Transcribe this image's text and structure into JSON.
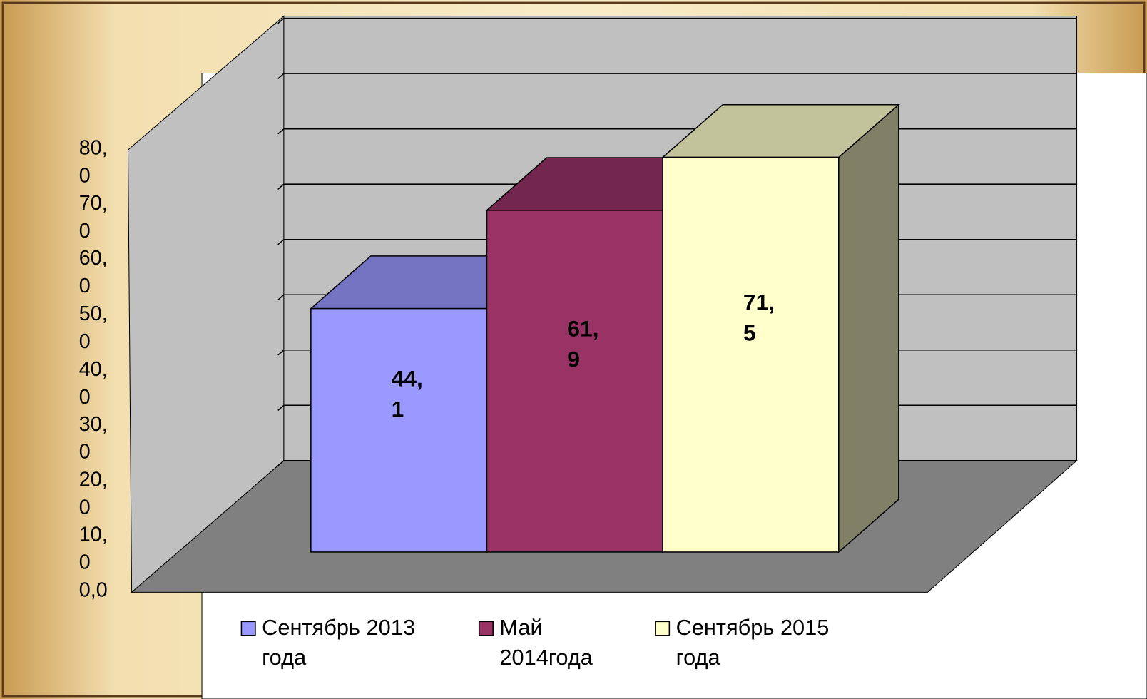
{
  "chart_data": {
    "type": "bar3d",
    "series": [
      {
        "name": "Сентябрь 2013 года",
        "color": "#9999ff",
        "values": [
          44.1
        ],
        "value_labels": [
          "44,1"
        ]
      },
      {
        "name": "Май 2014года",
        "color": "#993366",
        "values": [
          61.9
        ],
        "value_labels": [
          "61,9"
        ]
      },
      {
        "name": "Сентябрь 2015 года",
        "color": "#ffffcc",
        "values": [
          71.5
        ],
        "value_labels": [
          "71,5"
        ]
      }
    ],
    "ylim": [
      0,
      80
    ],
    "yticks": [
      {
        "value": 0,
        "label": "0,0"
      },
      {
        "value": 10,
        "label": "10,0"
      },
      {
        "value": 20,
        "label": "20,0"
      },
      {
        "value": 30,
        "label": "30,0"
      },
      {
        "value": 40,
        "label": "40,0"
      },
      {
        "value": 50,
        "label": "50,0"
      },
      {
        "value": 60,
        "label": "60,0"
      },
      {
        "value": 70,
        "label": "70,0"
      },
      {
        "value": 80,
        "label": "80,0"
      }
    ],
    "grid": true,
    "legend": "bottom"
  }
}
